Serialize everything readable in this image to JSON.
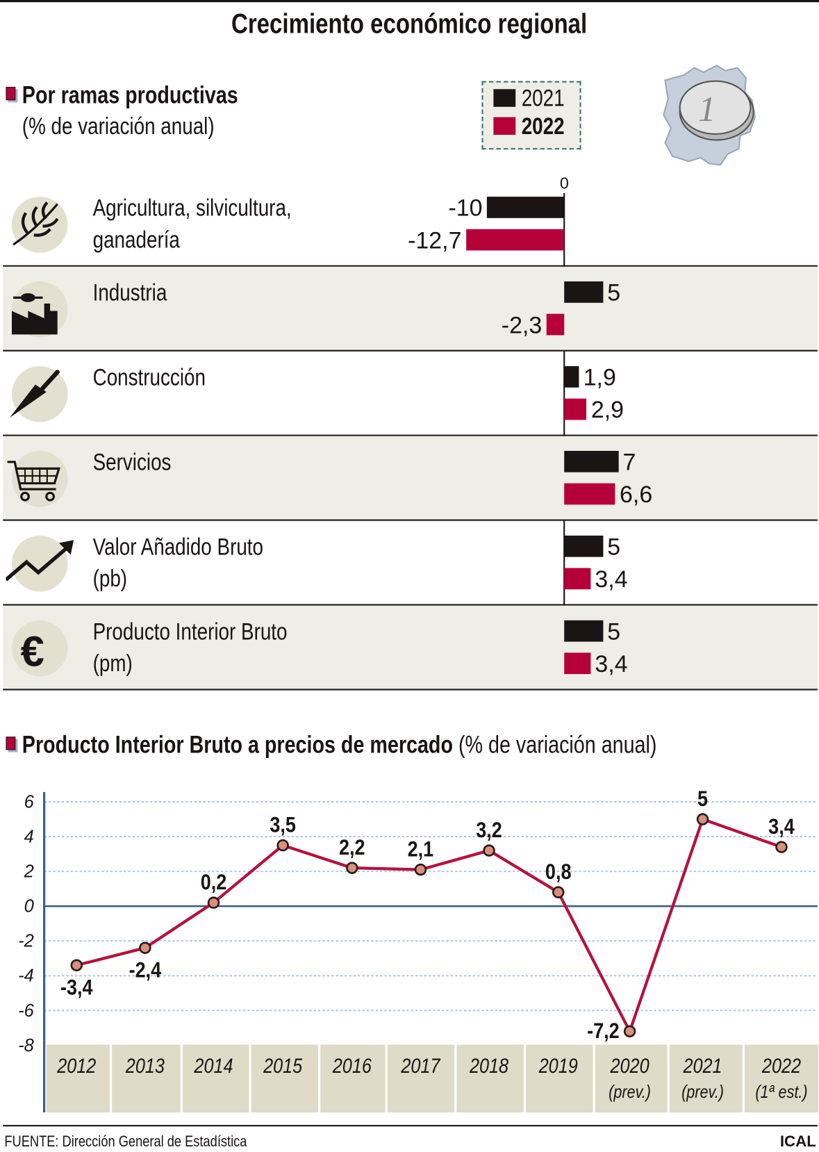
{
  "title": "Crecimiento económico regional",
  "section1": {
    "heading": "Por ramas productivas",
    "subheading": "(% de variación anual)",
    "legend": [
      {
        "label": "2021",
        "color": "#1a1414"
      },
      {
        "label": "2022",
        "color": "#b5003a"
      }
    ],
    "zero_label": "0",
    "chart_data": {
      "type": "bar",
      "orientation": "horizontal",
      "categories": [
        "Agricultura, silvicultura, ganadería",
        "Industria",
        "Construcción",
        "Servicios",
        "Valor Añadido Bruto (pb)",
        "Producto Interior Bruto (pm)"
      ],
      "series": [
        {
          "name": "2021",
          "values": [
            -10,
            5,
            1.9,
            7,
            5,
            5
          ],
          "labels": [
            "-10",
            "5",
            "1,9",
            "7",
            "5",
            "5"
          ]
        },
        {
          "name": "2022",
          "values": [
            -12.7,
            -2.3,
            2.9,
            6.6,
            3.4,
            3.4
          ],
          "labels": [
            "-12,7",
            "-2,3",
            "2,9",
            "6,6",
            "3,4",
            "3,4"
          ]
        }
      ]
    },
    "rows": [
      {
        "line1": "Agricultura, silvicultura,",
        "line2": "ganadería",
        "icon": "wheat-icon"
      },
      {
        "line1": "Industria",
        "line2": "",
        "icon": "factory-icon"
      },
      {
        "line1": "Construcción",
        "line2": "",
        "icon": "trowel-icon"
      },
      {
        "line1": "Servicios",
        "line2": "",
        "icon": "shopping-cart-icon"
      },
      {
        "line1": "Valor Añadido Bruto",
        "line2": "(pb)",
        "icon": "trend-up-icon"
      },
      {
        "line1": "Producto Interior Bruto",
        "line2": "(pm)",
        "icon": "euro-icon"
      }
    ]
  },
  "section2": {
    "heading": "Producto Interior Bruto a precios de mercado",
    "subheading": "(% de variación anual)",
    "chart_data": {
      "type": "line",
      "categories": [
        "2012",
        "2013",
        "2014",
        "2015",
        "2016",
        "2017",
        "2018",
        "2019",
        "2020",
        "2021",
        "2022"
      ],
      "category_notes": [
        "",
        "",
        "",
        "",
        "",
        "",
        "",
        "",
        "(prev.)",
        "(prev.)",
        "(1ª est.)"
      ],
      "values": [
        -3.4,
        -2.4,
        0.2,
        3.5,
        2.2,
        2.1,
        3.2,
        0.8,
        -7.2,
        5,
        3.4
      ],
      "labels": [
        "-3,4",
        "-2,4",
        "0,2",
        "3,5",
        "2,2",
        "2,1",
        "3,2",
        "0,8",
        "-7,2",
        "5",
        "3,4"
      ],
      "ylim": [
        -8,
        6
      ],
      "yticks": [
        "6",
        "4",
        "2",
        "0",
        "-2",
        "-4",
        "-6",
        "-8"
      ],
      "grid": true,
      "line_color": "#b5123d",
      "marker_color": "#d9907a"
    }
  },
  "footer": {
    "source": "FUENTE: Dirección General de Estadística",
    "credit": "ICAL"
  }
}
